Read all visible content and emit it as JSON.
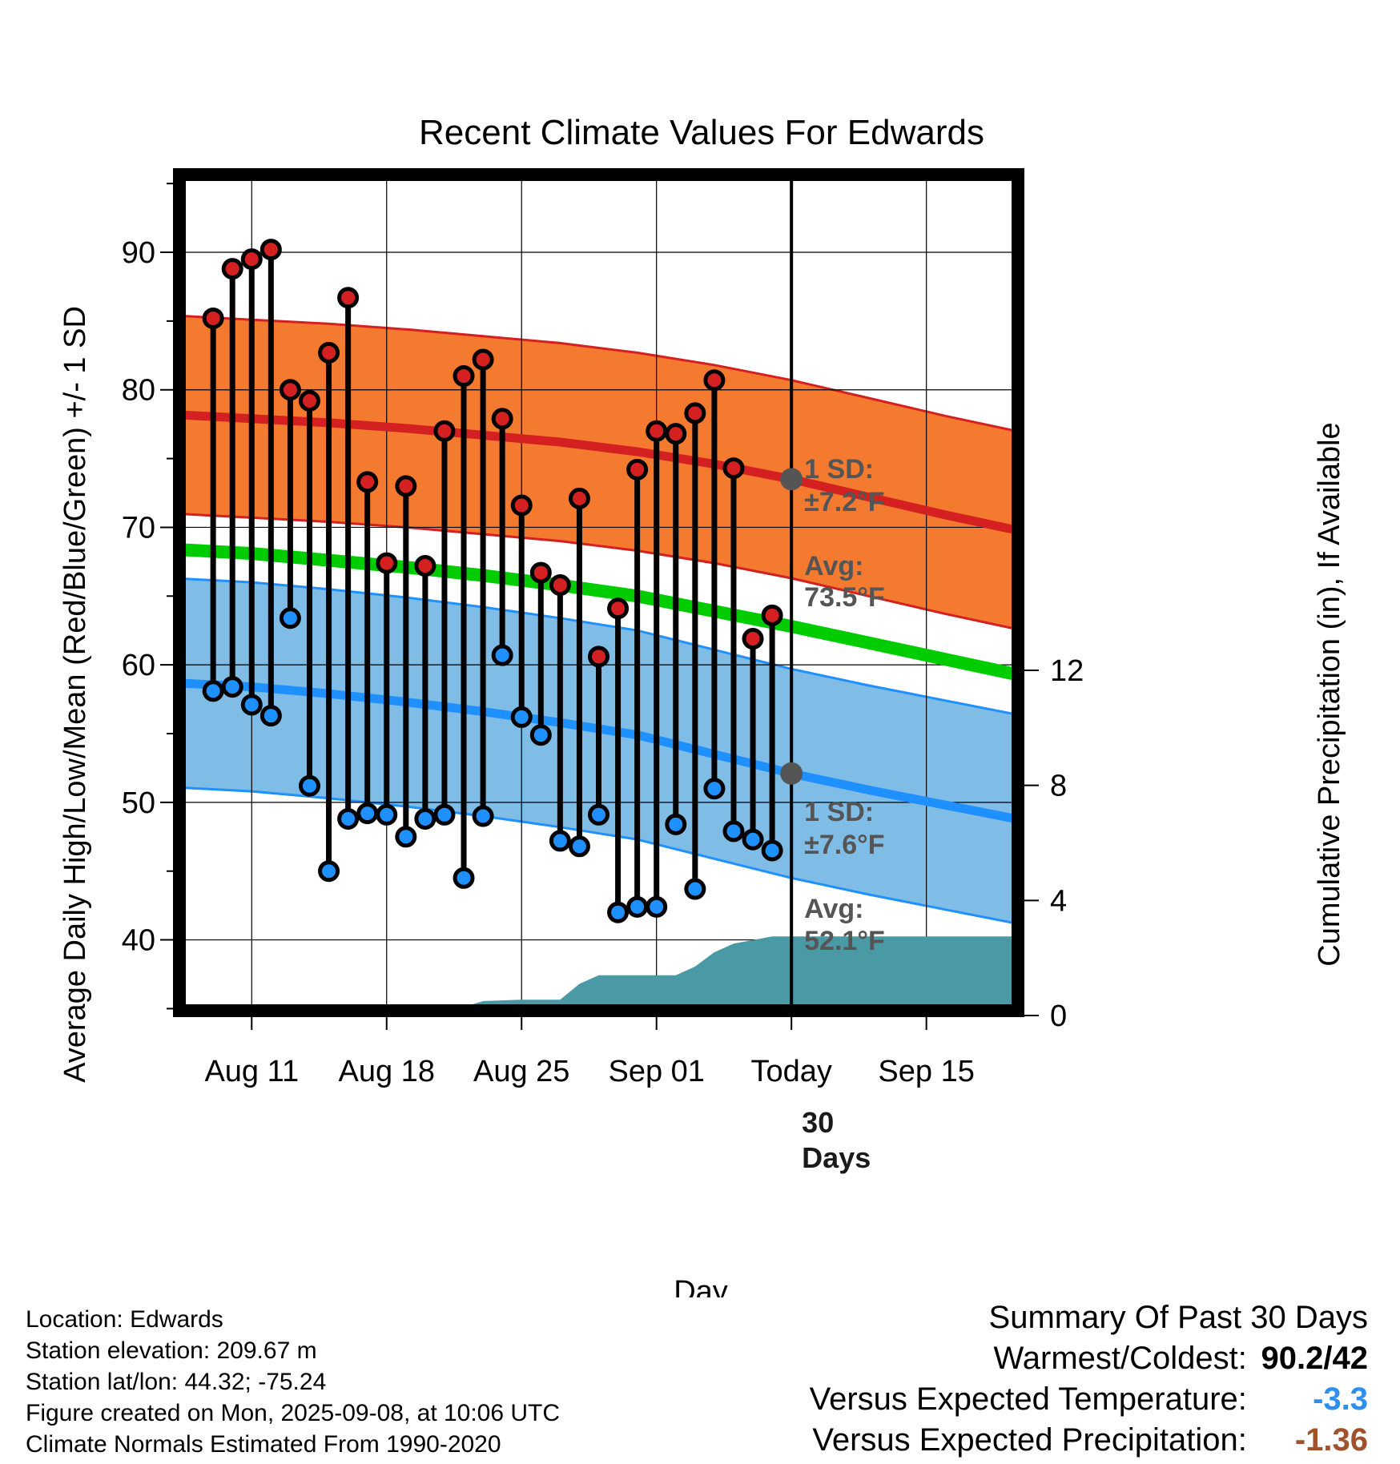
{
  "chart_data": {
    "type": "line",
    "title": "Recent Climate Values For Edwards",
    "xlabel": "Day",
    "ylabel": "Average Daily High/Low/Mean (Red/Blue/Green) +/- 1 SD",
    "y2label": "Cumulative Precipitation (in), If Available",
    "xlim": [
      "2025-08-07",
      "2025-09-20"
    ],
    "ylim": [
      34.5,
      96
    ],
    "y2lim": [
      0,
      29.4
    ],
    "x_ticks": [
      {
        "date": "2025-08-11",
        "label": "Aug 11"
      },
      {
        "date": "2025-08-18",
        "label": "Aug 18"
      },
      {
        "date": "2025-08-25",
        "label": "Aug 25"
      },
      {
        "date": "2025-09-01",
        "label": "Sep 01"
      },
      {
        "date": "2025-09-08",
        "label": "Today"
      },
      {
        "date": "2025-09-15",
        "label": "Sep 15"
      }
    ],
    "y_ticks": [
      40,
      50,
      60,
      70,
      80,
      90
    ],
    "y2_ticks": [
      0,
      4,
      8,
      12
    ],
    "grid": true,
    "normals": {
      "dates": [
        "2025-08-07",
        "2025-08-11",
        "2025-08-15",
        "2025-08-19",
        "2025-08-23",
        "2025-08-27",
        "2025-08-31",
        "2025-09-04",
        "2025-09-08",
        "2025-09-12",
        "2025-09-16",
        "2025-09-20"
      ],
      "high_mean": [
        78.2,
        77.9,
        77.6,
        77.2,
        76.7,
        76.2,
        75.5,
        74.6,
        73.5,
        72.2,
        70.9,
        69.7
      ],
      "high_sd": 7.2,
      "low_mean": [
        58.7,
        58.4,
        57.9,
        57.3,
        56.6,
        55.8,
        54.9,
        53.5,
        52.1,
        50.9,
        49.8,
        48.7
      ],
      "low_sd": 7.6,
      "mean": [
        68.4,
        68.1,
        67.6,
        67.1,
        66.5,
        65.8,
        65.0,
        63.9,
        62.8,
        61.6,
        60.4,
        59.2
      ]
    },
    "daily": {
      "dates": [
        "2025-08-09",
        "2025-08-10",
        "2025-08-11",
        "2025-08-12",
        "2025-08-13",
        "2025-08-14",
        "2025-08-15",
        "2025-08-16",
        "2025-08-17",
        "2025-08-18",
        "2025-08-19",
        "2025-08-20",
        "2025-08-21",
        "2025-08-22",
        "2025-08-23",
        "2025-08-24",
        "2025-08-25",
        "2025-08-26",
        "2025-08-27",
        "2025-08-28",
        "2025-08-29",
        "2025-08-30",
        "2025-08-31",
        "2025-09-01",
        "2025-09-02",
        "2025-09-03",
        "2025-09-04",
        "2025-09-05",
        "2025-09-06",
        "2025-09-07"
      ],
      "high": [
        85.2,
        88.8,
        89.5,
        90.2,
        80.0,
        79.2,
        82.7,
        86.7,
        73.3,
        67.4,
        73.0,
        67.2,
        77.0,
        81.0,
        82.2,
        77.9,
        71.6,
        66.7,
        65.8,
        72.1,
        60.6,
        64.1,
        74.2,
        77.0,
        76.8,
        78.3,
        80.7,
        74.3,
        61.9,
        63.6
      ],
      "low": [
        58.1,
        58.4,
        57.1,
        56.3,
        63.4,
        51.2,
        45.0,
        48.8,
        49.2,
        49.1,
        47.5,
        48.8,
        49.1,
        44.5,
        49.0,
        60.7,
        56.2,
        54.9,
        47.2,
        46.8,
        49.1,
        42.0,
        42.4,
        42.4,
        48.4,
        43.7,
        51.0,
        47.9,
        47.3,
        46.5
      ]
    },
    "precip": {
      "dates": [
        "2025-08-07",
        "2025-08-18",
        "2025-08-20",
        "2025-08-22",
        "2025-08-23",
        "2025-08-25",
        "2025-08-27",
        "2025-08-28",
        "2025-08-29",
        "2025-08-30",
        "2025-09-02",
        "2025-09-03",
        "2025-09-04",
        "2025-09-05",
        "2025-09-07",
        "2025-09-20"
      ],
      "cumulative": [
        0,
        0,
        0.25,
        0.3,
        0.5,
        0.55,
        0.55,
        1.1,
        1.4,
        1.4,
        1.4,
        1.7,
        2.2,
        2.5,
        2.75,
        2.75
      ]
    },
    "colors": {
      "high": "#d42020",
      "low": "#1e90ff",
      "mean": "#00cc00",
      "high_band": "#f47a30",
      "low_band": "#80bde6",
      "precip": "#4a9aa5"
    },
    "annotations": {
      "high_sd": [
        "1 SD:",
        "±7.2°F"
      ],
      "high_avg": [
        "Avg:",
        "73.5°F"
      ],
      "low_sd": [
        "1 SD:",
        "±7.6°F"
      ],
      "low_avg": [
        "Avg:",
        "52.1°F"
      ],
      "window": [
        "30",
        "Days"
      ]
    }
  },
  "info": [
    "Location: Edwards",
    "Station elevation: 209.67 m",
    "Station lat/lon: 44.32; -75.24",
    "Figure created on Mon, 2025-09-08, at 10:06 UTC",
    "Climate Normals Estimated From 1990-2020"
  ],
  "summary": {
    "heading": "Summary Of Past 30 Days",
    "warm_cold_label": "Warmest/Coldest:",
    "warm_cold_value": "90.2/42",
    "temp_label": "Versus Expected Temperature:",
    "temp_value": "-3.3",
    "temp_color": "#2f8ff0",
    "precip_label": "Versus Expected Precipitation:",
    "precip_value": "-1.36",
    "precip_color": "#a0522d"
  }
}
